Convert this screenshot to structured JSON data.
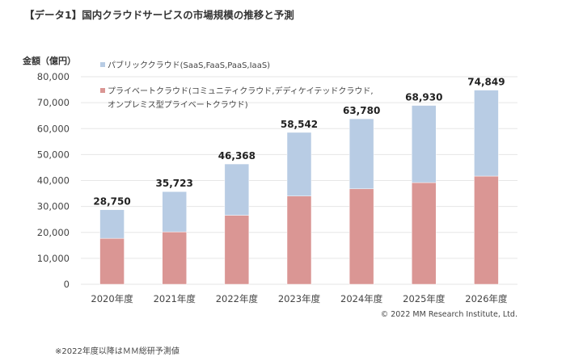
{
  "title": "【データ1】国内クラウドサービスの市場規模の推移と予測",
  "footnote": "※2022年度以降はＭＭ総研予測値",
  "chart_data": {
    "type": "bar",
    "stacked": true,
    "ylabel": "金額（億円）",
    "ylim": [
      0,
      80000
    ],
    "yticks": [
      "0",
      "10,000",
      "20,000",
      "30,000",
      "40,000",
      "50,000",
      "60,000",
      "70,000",
      "80,000"
    ],
    "grid": true,
    "legend_position": "top-left",
    "categories": [
      "2020年度",
      "2021年度",
      "2022年度",
      "2023年度",
      "2024年度",
      "2025年度",
      "2026年度"
    ],
    "totals": [
      28750,
      35723,
      46368,
      58542,
      63780,
      68930,
      74849
    ],
    "total_labels": [
      "28,750",
      "35,723",
      "46,368",
      "58,542",
      "63,780",
      "68,930",
      "74,849"
    ],
    "series": [
      {
        "name": "プライベートクラウド(コミュニティクラウド,デディケイテッドクラウド,オンプレミス型プライベートクラウド)",
        "name_lines": [
          "プライベートクラウド(コミュニティクラウド,デディケイテッドクラウド,",
          "オンプレミス型プライベートクラウド)"
        ],
        "color": "#da9694",
        "values": [
          17700,
          20200,
          26600,
          34000,
          36800,
          39200,
          41700
        ]
      },
      {
        "name": "パブリッククラウド(SaaS,FaaS,PaaS,IaaS)",
        "color": "#b8cce4",
        "values": [
          11050,
          15523,
          19768,
          24542,
          26980,
          29730,
          33149
        ]
      }
    ],
    "credit": "© 2022 MM Research Institute, Ltd."
  }
}
